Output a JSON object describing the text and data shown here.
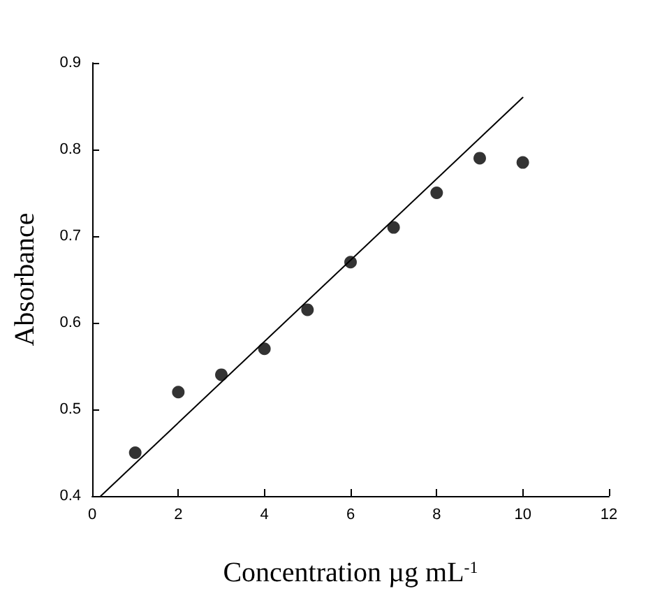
{
  "chart_data": {
    "type": "scatter",
    "xlabel": "Concentration µg mL$^{-1}$",
    "ylabel": "Absorbance",
    "xlim": [
      0,
      12
    ],
    "xticks": [
      0,
      2,
      4,
      6,
      8,
      10,
      12
    ],
    "ylim": [
      0.4,
      0.9
    ],
    "yticks": [
      0.4,
      0.5,
      0.6,
      0.7,
      0.8,
      0.9
    ],
    "grid": false,
    "series": [
      {
        "color": "#000000",
        "marker": "circle",
        "x": [
          1,
          2,
          3,
          4,
          5,
          6,
          7,
          8,
          9,
          10
        ],
        "values": [
          0.45,
          0.52,
          0.54,
          0.57,
          0.615,
          0.67,
          0.71,
          0.75,
          0.79,
          0.785
        ]
      },
      {
        "type": "line",
        "color": "#000000",
        "marker": "none",
        "line_style": "solid",
        "x": [
          0.2,
          10
        ],
        "values": [
          0.4,
          0.86
        ]
      }
    ]
  }
}
